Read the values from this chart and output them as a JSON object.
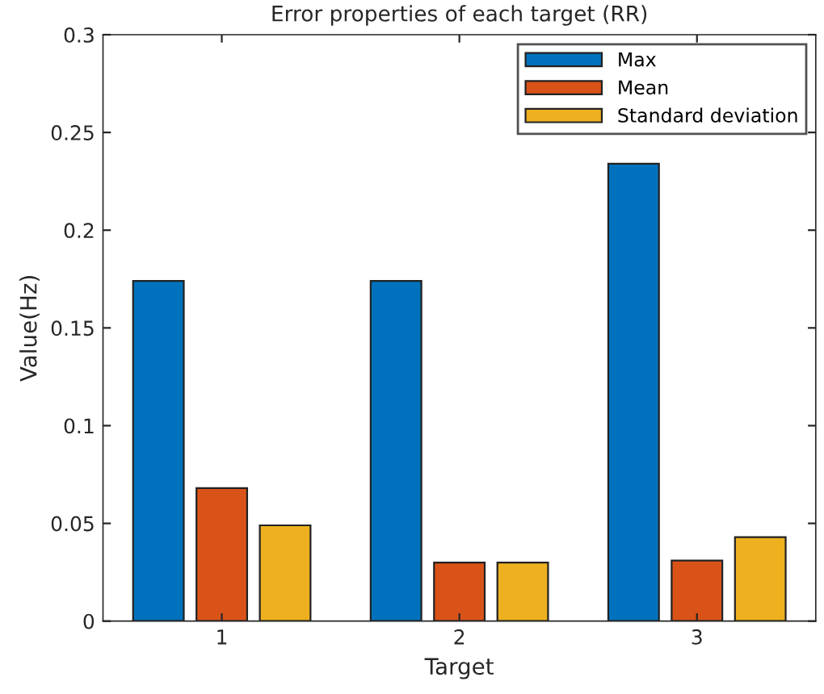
{
  "chart_data": {
    "type": "bar",
    "title": "Error properties of each target (RR)",
    "xlabel": "Target",
    "ylabel": "Value(Hz)",
    "categories": [
      "1",
      "2",
      "3"
    ],
    "series": [
      {
        "name": "Max",
        "color": "#0072bd",
        "values": [
          0.174,
          0.174,
          0.234
        ]
      },
      {
        "name": "Mean",
        "color": "#d95319",
        "values": [
          0.068,
          0.03,
          0.031
        ]
      },
      {
        "name": "Standard deviation",
        "color": "#edb120",
        "values": [
          0.049,
          0.03,
          0.043
        ]
      }
    ],
    "ylim": [
      0,
      0.3
    ],
    "yticks": [
      0,
      0.05,
      0.1,
      0.15,
      0.2,
      0.25,
      0.3
    ],
    "grid": false,
    "legend": "top right"
  }
}
